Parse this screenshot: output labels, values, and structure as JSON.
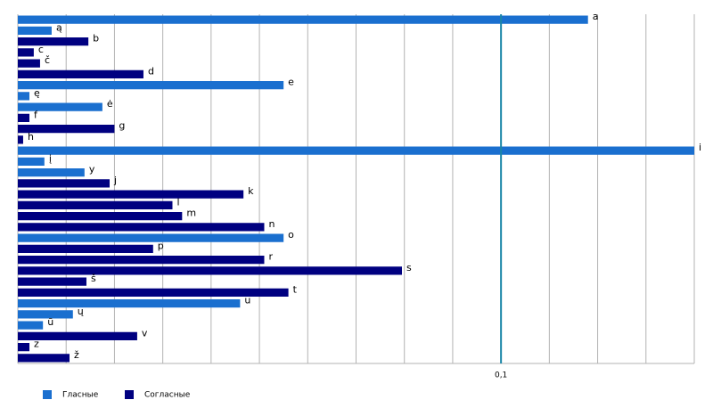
{
  "chart_data": {
    "type": "bar",
    "orientation": "horizontal",
    "categories": [
      "a",
      "ą",
      "b",
      "c",
      "č",
      "d",
      "e",
      "ę",
      "ė",
      "f",
      "g",
      "h",
      "i",
      "į",
      "y",
      "j",
      "k",
      "l",
      "m",
      "n",
      "o",
      "p",
      "r",
      "s",
      "š",
      "t",
      "u",
      "ų",
      "ū",
      "v",
      "z",
      "ž"
    ],
    "series": [
      {
        "name": "Гласные",
        "color": "#1a6fcf",
        "values": [
          0.118,
          0.007,
          null,
          null,
          null,
          null,
          0.055,
          0.0024,
          0.0175,
          null,
          null,
          null,
          0.14,
          0.0055,
          0.0138,
          null,
          null,
          null,
          null,
          null,
          0.055,
          null,
          null,
          null,
          null,
          null,
          0.046,
          0.0114,
          0.0052,
          null,
          null,
          null
        ]
      },
      {
        "name": "Согласные",
        "color": "#000080",
        "values": [
          null,
          null,
          0.0146,
          0.0033,
          0.0046,
          0.026,
          null,
          null,
          null,
          0.0024,
          0.02,
          0.0011,
          null,
          null,
          null,
          0.019,
          0.0467,
          0.032,
          0.034,
          0.051,
          null,
          0.028,
          0.051,
          0.0795,
          0.0142,
          0.056,
          null,
          null,
          null,
          0.0247,
          0.0024,
          0.0107
        ]
      }
    ],
    "xlim": [
      0,
      0.14
    ],
    "xticks": [
      {
        "value": 0.1,
        "label": "0,1"
      }
    ],
    "xgrid": [
      0.01,
      0.02,
      0.03,
      0.04,
      0.05,
      0.06,
      0.07,
      0.08,
      0.09,
      0.11,
      0.12,
      0.13,
      0.14
    ],
    "grid": true
  }
}
